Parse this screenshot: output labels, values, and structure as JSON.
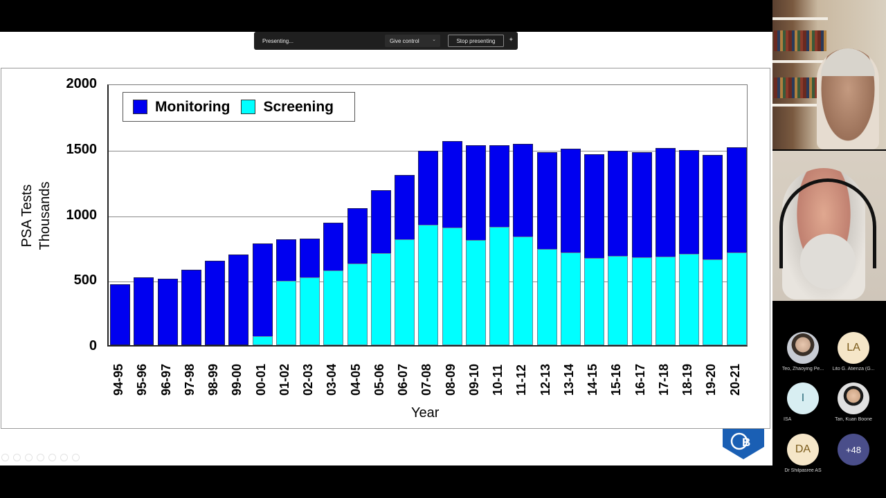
{
  "presenting_bar": {
    "status": "Presenting...",
    "give_control_label": "Give control",
    "stop_presenting_label": "Stop presenting",
    "pin_icon": "pin-icon"
  },
  "slide": {
    "legend": [
      {
        "label": "Monitoring",
        "color": "#0000f0"
      },
      {
        "label": "Screening",
        "color": "#00ffff"
      }
    ],
    "ylabel_line1": "PSA Tests",
    "ylabel_line2": "Thousands",
    "xlabel": "Year",
    "yticks": [
      "2000",
      "1500",
      "1000",
      "500",
      "0"
    ]
  },
  "chart_data": {
    "type": "bar",
    "stacked": true,
    "title": "",
    "xlabel": "Year",
    "ylabel": "PSA Tests Thousands",
    "ylim": [
      0,
      2000
    ],
    "yticks": [
      0,
      500,
      1000,
      1500,
      2000
    ],
    "grid": true,
    "legend_position": "top-left",
    "categories": [
      "94-95",
      "95-96",
      "96-97",
      "97-98",
      "98-99",
      "99-00",
      "00-01",
      "01-02",
      "02-03",
      "03-04",
      "04-05",
      "05-06",
      "06-07",
      "07-08",
      "08-09",
      "09-10",
      "10-11",
      "11-12",
      "12-13",
      "13-14",
      "14-15",
      "15-16",
      "16-17",
      "17-18",
      "18-19",
      "19-20",
      "20-21"
    ],
    "series": [
      {
        "name": "Screening",
        "color": "#00ffff",
        "values": [
          0,
          0,
          0,
          0,
          0,
          0,
          70,
          490,
          515,
          570,
          625,
          700,
          810,
          920,
          895,
          800,
          900,
          830,
          735,
          705,
          665,
          680,
          670,
          675,
          695,
          655,
          705
        ]
      },
      {
        "name": "Monitoring",
        "color": "#0000f0",
        "values": [
          465,
          515,
          505,
          575,
          645,
          690,
          705,
          315,
          300,
          365,
          420,
          480,
          490,
          565,
          660,
          725,
          625,
          705,
          740,
          795,
          790,
          805,
          805,
          830,
          795,
          795,
          805
        ]
      }
    ],
    "totals": [
      465,
      515,
      505,
      575,
      645,
      690,
      775,
      805,
      815,
      935,
      1045,
      1180,
      1300,
      1485,
      1555,
      1525,
      1525,
      1535,
      1475,
      1500,
      1455,
      1485,
      1475,
      1505,
      1490,
      1450,
      1510
    ]
  },
  "participants": {
    "video_tiles": [
      {
        "name": "participant-video-1"
      },
      {
        "name": "participant-video-2"
      }
    ],
    "list": [
      {
        "name": "Teo, Zhaoying Pe...",
        "initials": "",
        "type": "photo",
        "bg": "#b8c0c8"
      },
      {
        "name": "Lito G. Atienza (G...",
        "initials": "LA",
        "type": "initials",
        "bg": "#f5e6c8",
        "fg": "#7a5a1a"
      },
      {
        "name": "ISA",
        "initials": "I",
        "type": "initials",
        "bg": "#d8eef2",
        "fg": "#2a6a7a"
      },
      {
        "name": "Tan, Kuan Boone",
        "initials": "",
        "type": "photo",
        "bg": "#c8c8c8"
      },
      {
        "name": "Dr Shilpasree AS",
        "initials": "DA",
        "type": "initials",
        "bg": "#f5e6c8",
        "fg": "#7a5a1a"
      },
      {
        "name": "",
        "initials": "+48",
        "type": "overflow",
        "bg": "#4a4e8a",
        "fg": "#ffffff"
      }
    ]
  }
}
